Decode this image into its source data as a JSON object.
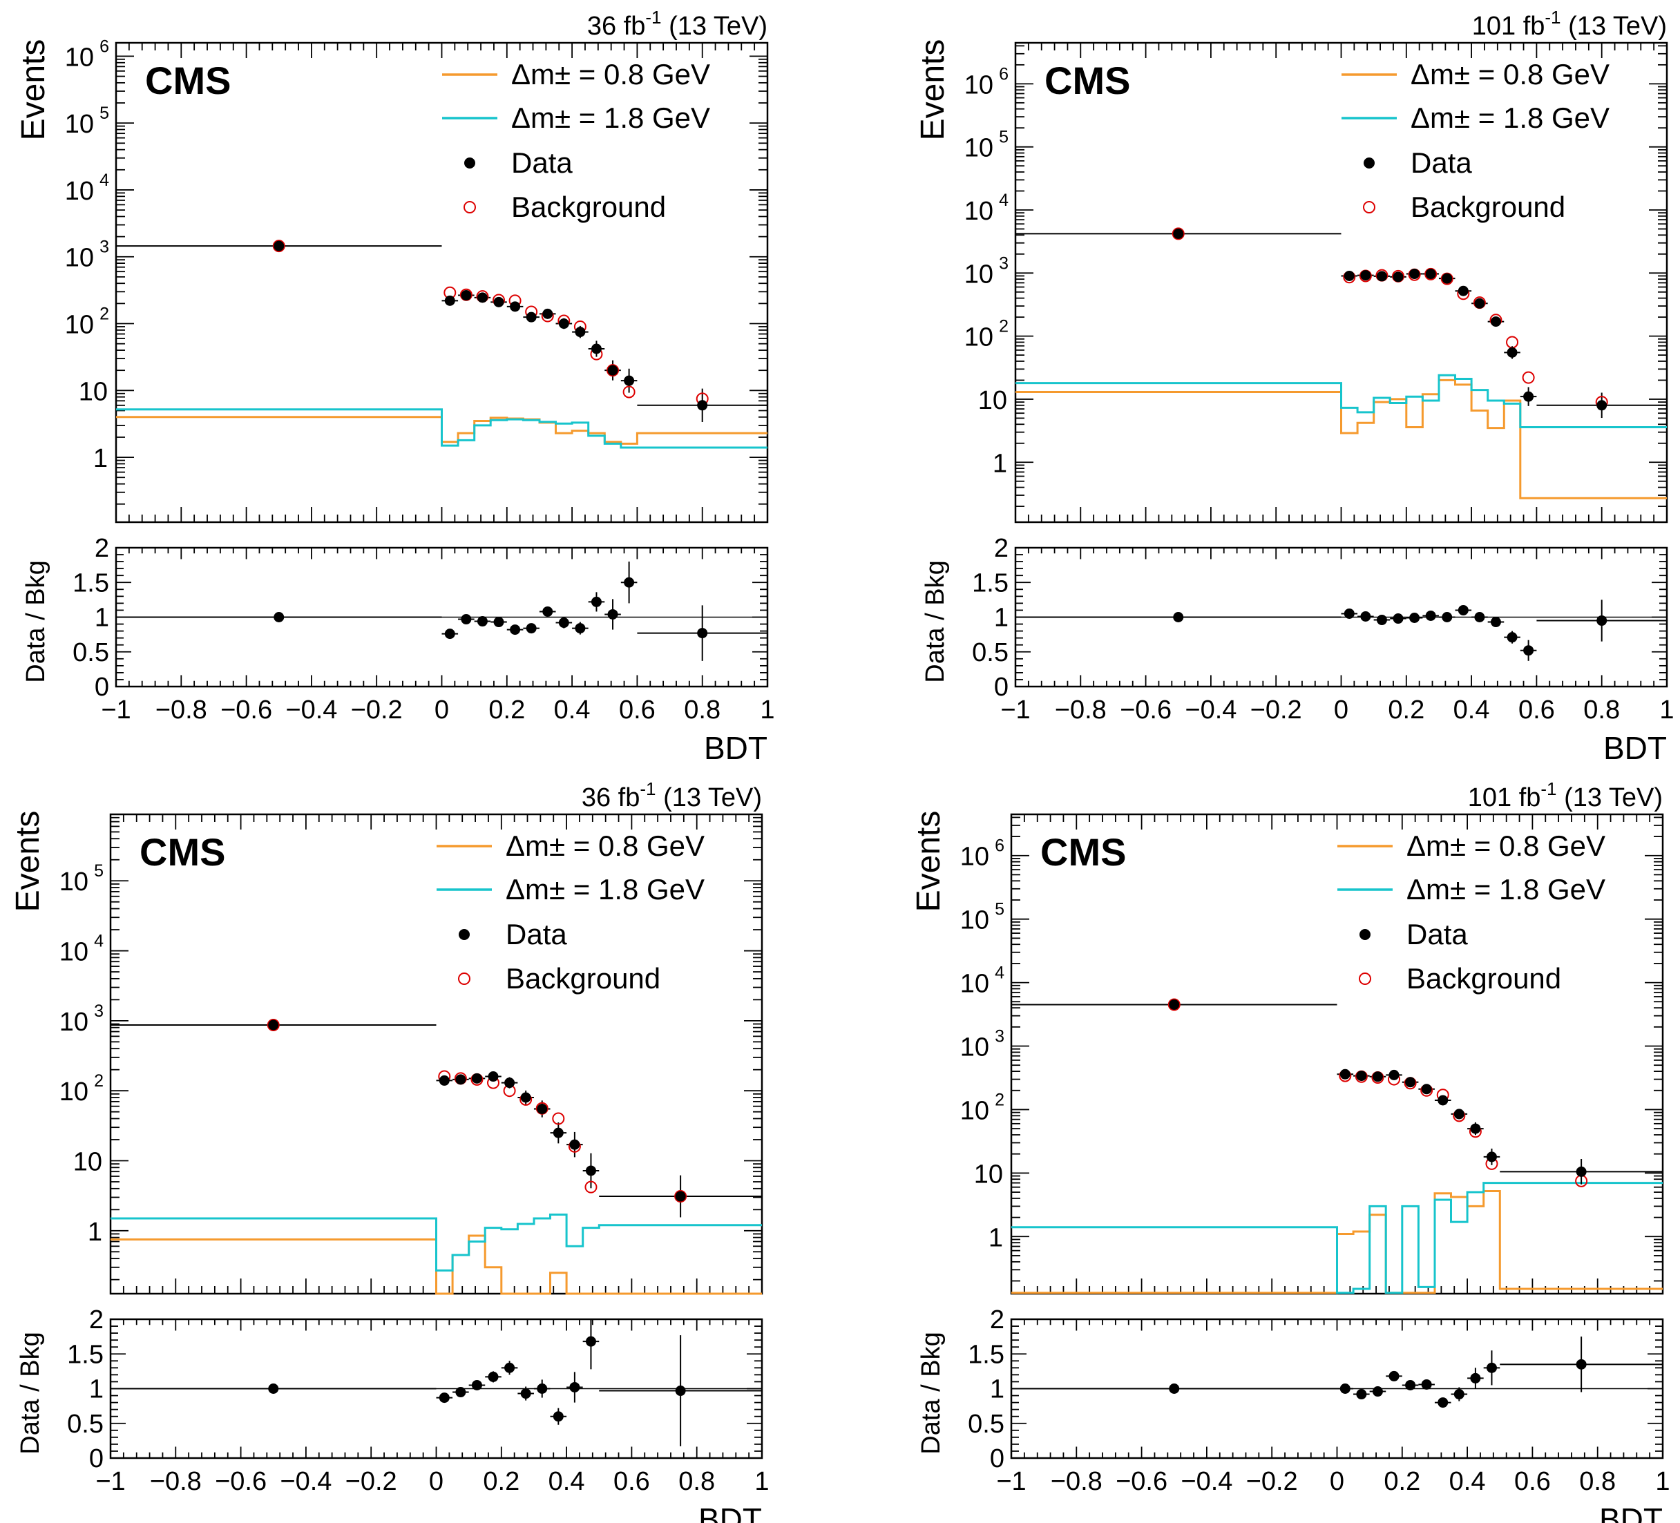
{
  "figure": {
    "experiment_label": "CMS",
    "ratio_ylabel": "Data / Bkg"
  },
  "colors": {
    "sig08": "#f59a2e",
    "sig18": "#17c4cc",
    "data": "#000000",
    "bkg": "#dd0000",
    "frame": "#000000"
  },
  "chart_data": [
    {
      "type": "line",
      "panel": "top-left",
      "lumi_prefix": "36 fb",
      "lumi_exp": "-1",
      "lumi_suffix": " (13 TeV)",
      "ylabel": "Events",
      "xlabel": "BDT",
      "ymin_log": -0.97,
      "ymax_log": 6.2,
      "ytick_labels": [
        {
          "v": 1,
          "t": "1"
        },
        {
          "v": 10,
          "t": "10"
        },
        {
          "v": 100,
          "t": "10",
          "e": "2"
        },
        {
          "v": 1000,
          "t": "10",
          "e": "3"
        },
        {
          "v": 10000,
          "t": "10",
          "e": "4"
        },
        {
          "v": 100000,
          "t": "10",
          "e": "5"
        },
        {
          "v": 1000000,
          "t": "10",
          "e": "6"
        }
      ],
      "xtick_labels": [
        "−1",
        "−0.8",
        "−0.6",
        "−0.4",
        "−0.2",
        "0",
        "0.2",
        "0.4",
        "0.6",
        "0.8",
        "1"
      ],
      "ratio_range": [
        0,
        2
      ],
      "ratio_ticks": [
        "0",
        "0.5",
        "1",
        "1.5",
        "2"
      ],
      "legend": {
        "sig08": "Δm± = 0.8 GeV",
        "sig18": "Δm± = 1.8 GeV",
        "data": "Data",
        "bkg": "Background"
      },
      "bins": [
        -1,
        0,
        0.05,
        0.1,
        0.15,
        0.2,
        0.25,
        0.3,
        0.35,
        0.4,
        0.45,
        0.5,
        0.55,
        0.6,
        1
      ],
      "data": [
        1450,
        220,
        265,
        245,
        210,
        180,
        125,
        140,
        100,
        75,
        42,
        20,
        14,
        6
      ],
      "data_err": [
        0.05,
        0.06,
        0.05,
        0.05,
        0.05,
        0.06,
        0.07,
        0.07,
        0.08,
        0.09,
        0.12,
        0.15,
        0.18,
        0.25
      ],
      "background": [
        1450,
        290,
        270,
        255,
        225,
        220,
        150,
        130,
        110,
        90,
        35,
        20,
        9.5,
        7.5
      ],
      "signal_08": [
        4.0,
        1.7,
        2.3,
        3.5,
        3.9,
        3.8,
        3.7,
        3.3,
        2.3,
        2.5,
        2.3,
        1.7,
        1.6,
        2.3
      ],
      "signal_18": [
        5.2,
        1.5,
        1.8,
        3.0,
        3.6,
        3.7,
        3.6,
        3.4,
        3.2,
        3.3,
        2.1,
        1.6,
        1.4,
        1.4
      ],
      "ratio": [
        1.0,
        0.76,
        0.97,
        0.94,
        0.93,
        0.82,
        0.84,
        1.08,
        0.92,
        0.84,
        1.22,
        1.04,
        1.5,
        0.77
      ],
      "ratio_err": [
        0.02,
        0.05,
        0.04,
        0.05,
        0.05,
        0.06,
        0.07,
        0.07,
        0.08,
        0.09,
        0.14,
        0.22,
        0.3,
        0.4
      ]
    },
    {
      "type": "line",
      "panel": "top-right",
      "lumi_prefix": "101 fb",
      "lumi_exp": "-1",
      "lumi_suffix": " (13 TeV)",
      "ylabel": "Events",
      "xlabel": "BDT",
      "ymin_log": -0.95,
      "ymax_log": 6.65,
      "ytick_labels": [
        {
          "v": 1,
          "t": "1"
        },
        {
          "v": 10,
          "t": "10"
        },
        {
          "v": 100,
          "t": "10",
          "e": "2"
        },
        {
          "v": 1000,
          "t": "10",
          "e": "3"
        },
        {
          "v": 10000,
          "t": "10",
          "e": "4"
        },
        {
          "v": 100000,
          "t": "10",
          "e": "5"
        },
        {
          "v": 1000000,
          "t": "10",
          "e": "6"
        }
      ],
      "xtick_labels": [
        "−1",
        "−0.8",
        "−0.6",
        "−0.4",
        "−0.2",
        "0",
        "0.2",
        "0.4",
        "0.6",
        "0.8",
        "1"
      ],
      "ratio_range": [
        0,
        2
      ],
      "ratio_ticks": [
        "0",
        "0.5",
        "1",
        "1.5",
        "2"
      ],
      "legend": {
        "sig08": "Δm± = 0.8 GeV",
        "sig18": "Δm± = 1.8 GeV",
        "data": "Data",
        "bkg": "Background"
      },
      "bins": [
        -1,
        0,
        0.05,
        0.1,
        0.15,
        0.2,
        0.25,
        0.3,
        0.35,
        0.4,
        0.45,
        0.5,
        0.55,
        0.6,
        1
      ],
      "data": [
        4200,
        900,
        920,
        890,
        870,
        970,
        970,
        820,
        520,
        330,
        170,
        55,
        11,
        8
      ],
      "data_err": [
        0.04,
        0.04,
        0.04,
        0.04,
        0.04,
        0.04,
        0.04,
        0.05,
        0.05,
        0.06,
        0.07,
        0.1,
        0.15,
        0.2
      ],
      "background": [
        4200,
        860,
        900,
        920,
        890,
        940,
        960,
        810,
        470,
        340,
        180,
        80,
        22,
        9
      ],
      "signal_08": [
        13,
        2.9,
        4.2,
        9.0,
        10.0,
        3.6,
        12.0,
        20.0,
        17.0,
        6.6,
        3.5,
        9.5,
        0.27,
        0.27
      ],
      "signal_18": [
        18,
        7.3,
        6.2,
        10.5,
        8.7,
        11.0,
        9.5,
        24.0,
        21.0,
        14.0,
        9.5,
        8.5,
        3.6,
        3.6
      ],
      "ratio": [
        1.0,
        1.05,
        1.01,
        0.96,
        0.98,
        0.99,
        1.02,
        1.0,
        1.1,
        1.0,
        0.93,
        0.71,
        0.52,
        0.95
      ],
      "ratio_err": [
        0.02,
        0.04,
        0.04,
        0.04,
        0.04,
        0.04,
        0.04,
        0.05,
        0.05,
        0.06,
        0.07,
        0.09,
        0.15,
        0.3
      ]
    },
    {
      "type": "line",
      "panel": "bottom-left",
      "lumi_prefix": "36 fb",
      "lumi_exp": "-1",
      "lumi_suffix": " (13 TeV)",
      "ylabel": "Events",
      "xlabel": "BDT",
      "ymin_log": -0.9,
      "ymax_log": 5.95,
      "ytick_labels": [
        {
          "v": 1,
          "t": "1"
        },
        {
          "v": 10,
          "t": "10"
        },
        {
          "v": 100,
          "t": "10",
          "e": "2"
        },
        {
          "v": 1000,
          "t": "10",
          "e": "3"
        },
        {
          "v": 10000,
          "t": "10",
          "e": "4"
        },
        {
          "v": 100000,
          "t": "10",
          "e": "5"
        }
      ],
      "xtick_labels": [
        "−1",
        "−0.8",
        "−0.6",
        "−0.4",
        "−0.2",
        "0",
        "0.2",
        "0.4",
        "0.6",
        "0.8",
        "1"
      ],
      "ratio_range": [
        0,
        2
      ],
      "ratio_ticks": [
        "0",
        "0.5",
        "1",
        "1.5",
        "2"
      ],
      "legend": {
        "sig08": "Δm± = 0.8 GeV",
        "sig18": "Δm± = 1.8 GeV",
        "data": "Data",
        "bkg": "Background"
      },
      "bins": [
        -1,
        0,
        0.05,
        0.1,
        0.15,
        0.2,
        0.25,
        0.3,
        0.35,
        0.4,
        0.45,
        0.5,
        1
      ],
      "data": [
        870,
        140,
        145,
        150,
        160,
        130,
        80,
        55,
        25,
        17,
        7.2,
        3.1
      ],
      "data_err": [
        0.05,
        0.07,
        0.07,
        0.07,
        0.07,
        0.08,
        0.1,
        0.12,
        0.15,
        0.18,
        0.25,
        0.3
      ],
      "background": [
        870,
        160,
        150,
        145,
        130,
        100,
        75,
        56,
        40,
        16,
        4.2,
        3.1
      ],
      "signal_08": [
        0.75,
        0.12,
        0.45,
        0.85,
        0.3,
        0.12,
        0.12,
        0.12,
        0.25,
        0.12,
        0.12,
        0.12
      ],
      "signal_18": [
        1.5,
        0.27,
        0.45,
        0.7,
        1.1,
        1.05,
        1.25,
        1.5,
        1.7,
        0.6,
        1.1,
        1.2
      ],
      "ratio": [
        1.0,
        0.87,
        0.95,
        1.05,
        1.17,
        1.3,
        0.93,
        1.0,
        0.6,
        1.02,
        1.68,
        0.97
      ],
      "ratio_err": [
        0.02,
        0.06,
        0.07,
        0.07,
        0.08,
        0.1,
        0.1,
        0.13,
        0.12,
        0.22,
        0.4,
        0.8
      ]
    },
    {
      "type": "line",
      "panel": "bottom-right",
      "lumi_prefix": "101 fb",
      "lumi_exp": "-1",
      "lumi_suffix": " (13 TeV)",
      "ylabel": "Events",
      "xlabel": "BDT",
      "ymin_log": -0.9,
      "ymax_log": 6.65,
      "ytick_labels": [
        {
          "v": 1,
          "t": "1"
        },
        {
          "v": 10,
          "t": "10"
        },
        {
          "v": 100,
          "t": "10",
          "e": "2"
        },
        {
          "v": 1000,
          "t": "10",
          "e": "3"
        },
        {
          "v": 10000,
          "t": "10",
          "e": "4"
        },
        {
          "v": 100000,
          "t": "10",
          "e": "5"
        },
        {
          "v": 1000000,
          "t": "10",
          "e": "6"
        }
      ],
      "xtick_labels": [
        "−1",
        "−0.8",
        "−0.6",
        "−0.4",
        "−0.2",
        "0",
        "0.2",
        "0.4",
        "0.6",
        "0.8",
        "1"
      ],
      "ratio_range": [
        0,
        2
      ],
      "ratio_ticks": [
        "0",
        "0.5",
        "1",
        "1.5",
        "2"
      ],
      "legend": {
        "sig08": "Δm± = 0.8 GeV",
        "sig18": "Δm± = 1.8 GeV",
        "data": "Data",
        "bkg": "Background"
      },
      "bins": [
        -1,
        0,
        0.05,
        0.1,
        0.15,
        0.2,
        0.25,
        0.3,
        0.35,
        0.4,
        0.45,
        0.5,
        1
      ],
      "data": [
        4500,
        360,
        340,
        330,
        350,
        270,
        210,
        140,
        85,
        50,
        18,
        10.5
      ],
      "data_err": [
        0.03,
        0.04,
        0.04,
        0.04,
        0.04,
        0.05,
        0.05,
        0.06,
        0.08,
        0.1,
        0.13,
        0.2
      ],
      "background": [
        4500,
        340,
        330,
        320,
        300,
        260,
        200,
        170,
        80,
        45,
        14,
        7.5
      ],
      "signal_08": [
        0.13,
        1.1,
        1.2,
        2.2,
        0.13,
        0.13,
        0.13,
        4.8,
        4.2,
        3.0,
        5.2,
        0.15
      ],
      "signal_18": [
        1.4,
        0.13,
        0.15,
        3.0,
        0.13,
        3.0,
        0.16,
        3.8,
        1.7,
        5.0,
        7.0,
        7.0
      ],
      "ratio": [
        1.0,
        1.0,
        0.92,
        0.96,
        1.18,
        1.05,
        1.06,
        0.8,
        0.92,
        1.15,
        1.3,
        1.35
      ],
      "ratio_err": [
        0.02,
        0.04,
        0.04,
        0.04,
        0.05,
        0.06,
        0.06,
        0.06,
        0.1,
        0.15,
        0.25,
        0.4
      ]
    }
  ]
}
